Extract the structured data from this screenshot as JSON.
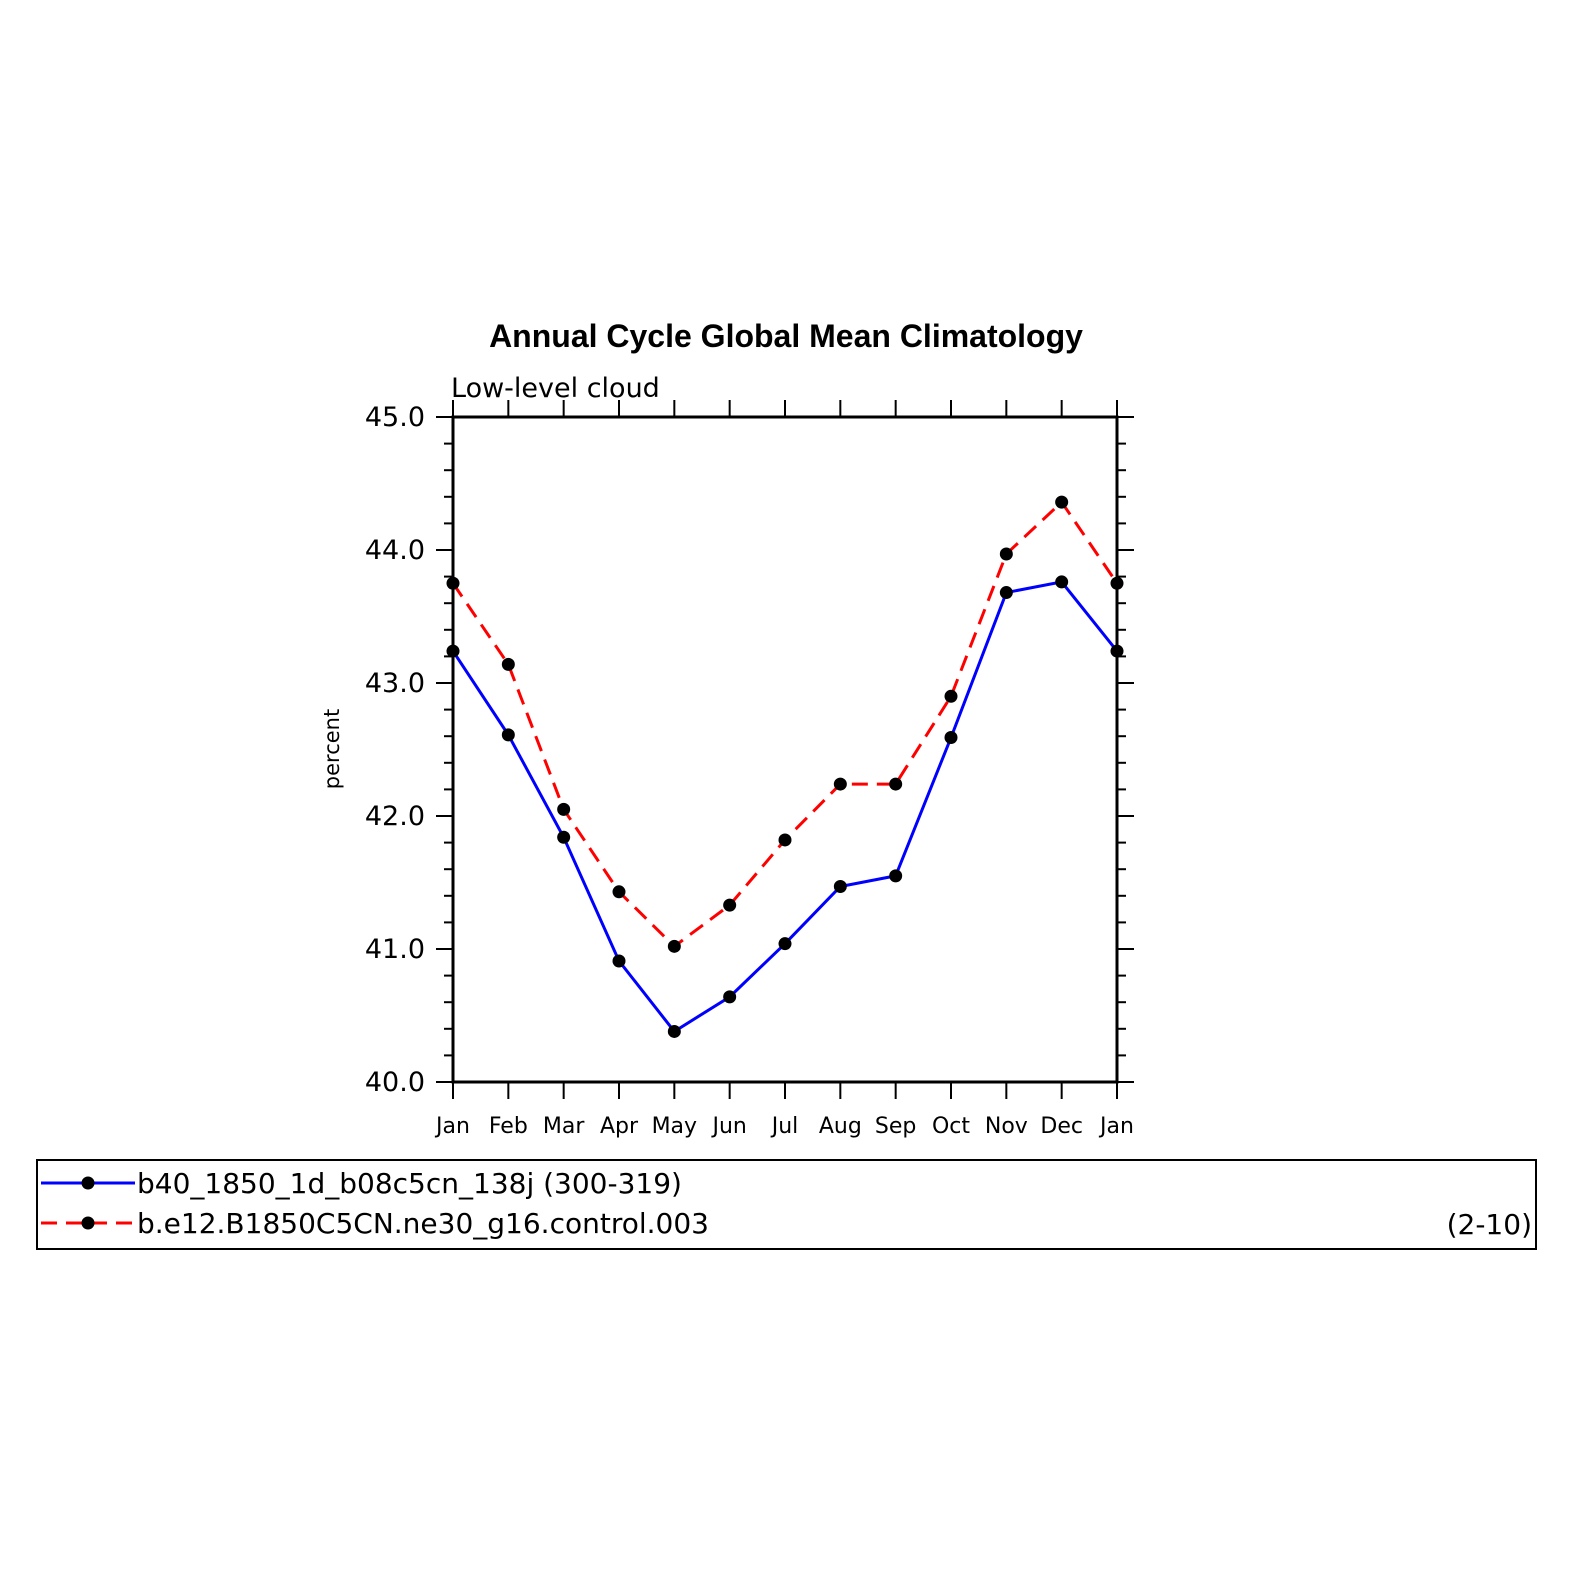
{
  "chart_data": {
    "type": "line",
    "title": "Annual Cycle Global Mean Climatology",
    "subtitle": "Low-level cloud",
    "ylabel": "percent",
    "xlabel": "",
    "categories": [
      "Jan",
      "Feb",
      "Mar",
      "Apr",
      "May",
      "Jun",
      "Jul",
      "Aug",
      "Sep",
      "Oct",
      "Nov",
      "Dec",
      "Jan"
    ],
    "ylim": [
      40.0,
      45.0
    ],
    "yticks": [
      "40.0",
      "41.0",
      "42.0",
      "43.0",
      "44.0",
      "45.0"
    ],
    "yticks_values": [
      40.0,
      41.0,
      42.0,
      43.0,
      44.0,
      45.0
    ],
    "grid": false,
    "legend_position": "bottom",
    "series": [
      {
        "name": "b40_1850_1d_b08c5cn_138j (300-319)",
        "color": "#0000ff",
        "dash": "solid",
        "marker": "filled-circle",
        "values": [
          43.24,
          42.61,
          41.84,
          40.91,
          40.38,
          40.64,
          41.04,
          41.47,
          41.55,
          42.59,
          43.68,
          43.76,
          43.24
        ]
      },
      {
        "name": "b.e12.B1850C5CN.ne30_g16.control.003",
        "color": "#ff0000",
        "dash": "dashed",
        "marker": "filled-circle",
        "values": [
          43.75,
          43.14,
          42.05,
          41.43,
          41.02,
          41.33,
          41.82,
          42.24,
          42.24,
          42.9,
          43.97,
          44.36,
          43.75
        ]
      }
    ],
    "legend_note": "(2-10)"
  }
}
